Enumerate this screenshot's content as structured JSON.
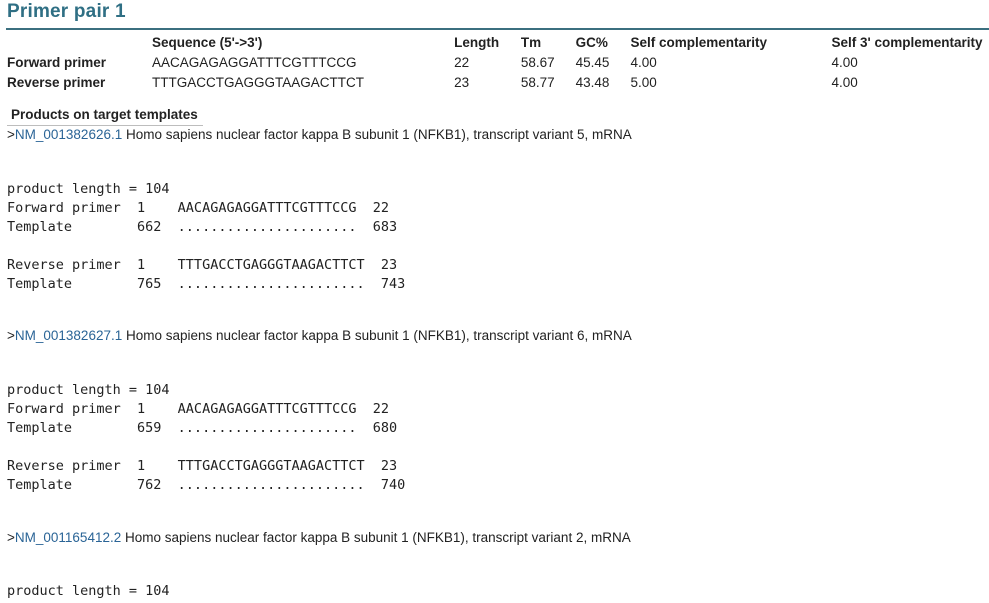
{
  "title": "Primer pair 1",
  "table": {
    "headers": [
      "",
      "Sequence (5'->3')",
      "Length",
      "Tm",
      "GC%",
      "Self complementarity",
      "Self 3' complementarity"
    ],
    "rows": [
      {
        "label": "Forward primer",
        "sequence": "AACAGAGAGGATTTCGTTTCCG",
        "length": "22",
        "tm": "58.67",
        "gc": "45.45",
        "self_comp": "4.00",
        "self3_comp": "4.00"
      },
      {
        "label": "Reverse primer",
        "sequence": "TTTGACCTGAGGGTAAGACTTCT",
        "length": "23",
        "tm": "58.77",
        "gc": "43.48",
        "self_comp": "5.00",
        "self3_comp": "4.00"
      }
    ]
  },
  "products_heading": "Products on target templates",
  "hits": [
    {
      "gt": ">",
      "accession": "NM_001382626.1",
      "description": " Homo sapiens nuclear factor kappa B subunit 1 (NFKB1), transcript variant 5, mRNA",
      "alignment": "product length = 104\nForward primer  1    AACAGAGAGGATTTCGTTTCCG  22\nTemplate        662  ......................  683\n\nReverse primer  1    TTTGACCTGAGGGTAAGACTTCT  23\nTemplate        765  .......................  743"
    },
    {
      "gt": ">",
      "accession": "NM_001382627.1",
      "description": " Homo sapiens nuclear factor kappa B subunit 1 (NFKB1), transcript variant 6, mRNA",
      "alignment": "product length = 104\nForward primer  1    AACAGAGAGGATTTCGTTTCCG  22\nTemplate        659  ......................  680\n\nReverse primer  1    TTTGACCTGAGGGTAAGACTTCT  23\nTemplate        762  .......................  740"
    },
    {
      "gt": ">",
      "accession": "NM_001165412.2",
      "description": " Homo sapiens nuclear factor kappa B subunit 1 (NFKB1), transcript variant 2, mRNA",
      "alignment": "product length = 104"
    }
  ]
}
